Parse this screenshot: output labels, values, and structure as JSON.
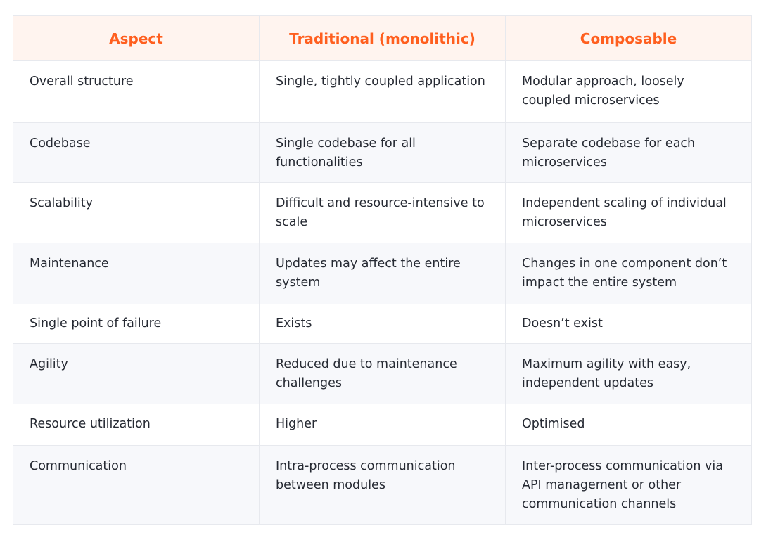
{
  "table": {
    "headers": {
      "aspect": "Aspect",
      "traditional": "Traditional (monolithic)",
      "composable": "Composable"
    },
    "rows": [
      {
        "aspect": "Overall structure",
        "traditional": "Single, tightly coupled application",
        "composable": "Modular approach, loosely coupled microservices"
      },
      {
        "aspect": "Codebase",
        "traditional": "Single codebase for all functionalities",
        "composable": "Separate codebase for each microservices"
      },
      {
        "aspect": "Scalability",
        "traditional": "Difficult and resource-intensive to scale",
        "composable": "Independent scaling of individual microservices"
      },
      {
        "aspect": "Maintenance",
        "traditional": "Updates may affect the entire system",
        "composable": "Changes in one component don’t impact the entire system"
      },
      {
        "aspect": "Single point of failure",
        "traditional": "Exists",
        "composable": "Doesn’t exist"
      },
      {
        "aspect": "Agility",
        "traditional": "Reduced due to maintenance challenges",
        "composable": "Maximum agility with easy, independent updates"
      },
      {
        "aspect": "Resource utilization",
        "traditional": "Higher",
        "composable": "Optimised"
      },
      {
        "aspect": "Communication",
        "traditional": "Intra-process communication between modules",
        "composable": "Inter-process communication via API management or other communication channels"
      }
    ]
  },
  "colors": {
    "header_text": "#ff5f1f",
    "header_bg": "#fff4ef",
    "body_text": "#262a33",
    "stripe_bg": "#f7f8fb",
    "border": "#e7e9ee"
  }
}
